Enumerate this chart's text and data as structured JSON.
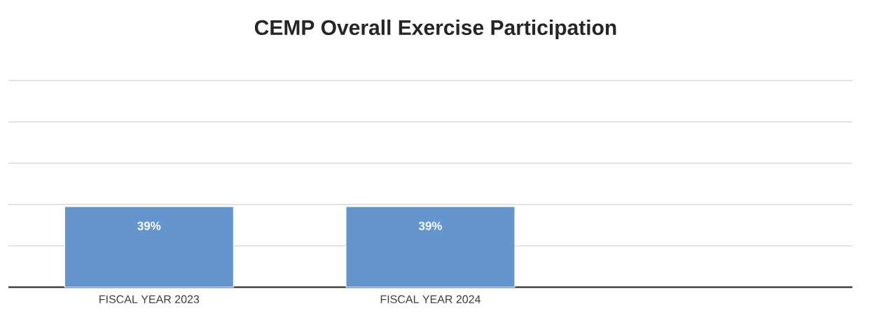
{
  "chart_data": {
    "type": "bar",
    "title": "CEMP Overall Exercise Participation",
    "categories": [
      "FISCAL YEAR 2023",
      "FISCAL YEAR 2024",
      null
    ],
    "values": [
      39,
      39,
      null
    ],
    "value_labels": [
      "39%",
      "39%",
      null
    ],
    "color": "#6495cd",
    "ylim": [
      0,
      100
    ],
    "yticks": [
      {
        "value": 0,
        "label": null
      },
      {
        "value": 20,
        "label": null
      },
      {
        "value": 40,
        "label": null
      },
      {
        "value": 60,
        "label": null
      },
      {
        "value": 80,
        "label": null
      },
      {
        "value": 100,
        "label": null
      }
    ],
    "tick_labels": "x",
    "grid": "y"
  }
}
